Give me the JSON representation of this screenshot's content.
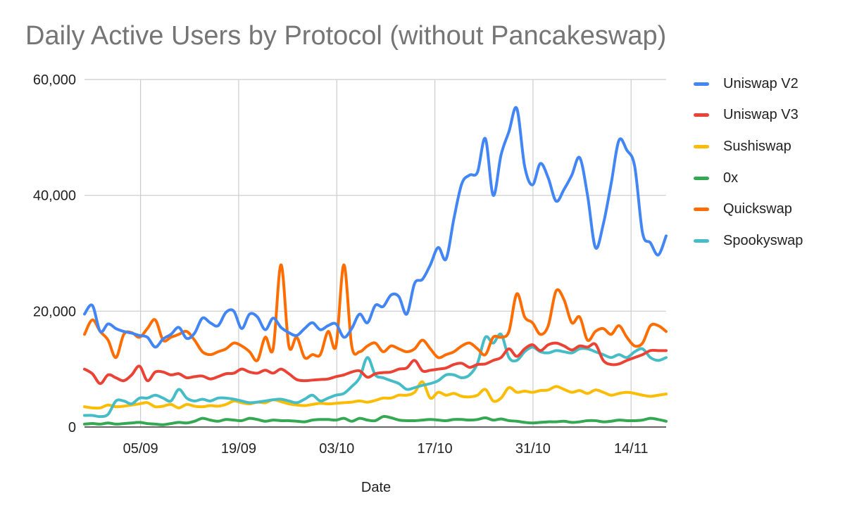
{
  "chart_data": {
    "type": "line",
    "title": "Daily Active Users by Protocol (without Pancakeswap)",
    "xlabel": "Date",
    "ylabel": "",
    "ylim": [
      0,
      60000
    ],
    "yticks": [
      "0",
      "20,000",
      "40,000",
      "60,000"
    ],
    "grid": true,
    "legend_position": "right",
    "x_start": "2021-08-28",
    "x_end": "2021-11-19",
    "x_ticks": [
      {
        "label": "05/09",
        "date": "2021-09-05"
      },
      {
        "label": "19/09",
        "date": "2021-09-19"
      },
      {
        "label": "03/10",
        "date": "2021-10-03"
      },
      {
        "label": "17/10",
        "date": "2021-10-17"
      },
      {
        "label": "31/10",
        "date": "2021-10-31"
      },
      {
        "label": "14/11",
        "date": "2021-11-14"
      }
    ],
    "series": [
      {
        "name": "Uniswap V2",
        "color": "#4285f4",
        "values": [
          19500,
          21000,
          16500,
          17800,
          17000,
          16500,
          16200,
          15800,
          15500,
          13800,
          15200,
          16000,
          17200,
          15300,
          16200,
          18800,
          18000,
          17500,
          19800,
          20000,
          17000,
          19500,
          19000,
          16800,
          18800,
          17200,
          16300,
          15800,
          17000,
          18000,
          16800,
          17500,
          17800,
          15500,
          17000,
          19500,
          18000,
          21000,
          20800,
          22800,
          22500,
          19500,
          24800,
          25500,
          28000,
          31000,
          29000,
          36000,
          42000,
          43500,
          44000,
          49800,
          40000,
          47000,
          51000,
          55000,
          45000,
          41800,
          45500,
          43000,
          39000,
          41000,
          43500,
          46500,
          40000,
          31000,
          35000,
          42000,
          49500,
          47800,
          45000,
          33500,
          31800,
          29700,
          33000
        ]
      },
      {
        "name": "Uniswap V3",
        "color": "#ea4335",
        "values": [
          10000,
          9200,
          7500,
          9000,
          8500,
          8000,
          9000,
          10500,
          8000,
          9500,
          9500,
          9000,
          9200,
          8500,
          8700,
          8800,
          8300,
          8700,
          9200,
          9300,
          10000,
          9500,
          9300,
          9800,
          9300,
          10000,
          9200,
          8200,
          8000,
          8100,
          8200,
          8300,
          8700,
          9000,
          9500,
          9700,
          8600,
          9200,
          9400,
          9500,
          10000,
          10200,
          11500,
          9700,
          9800,
          10000,
          10200,
          10800,
          11000,
          10300,
          10800,
          10900,
          11500,
          12000,
          13500,
          12200,
          13500,
          14200,
          13200,
          14200,
          14500,
          14000,
          13300,
          14000,
          13800,
          14300,
          11500,
          10800,
          10900,
          11500,
          12000,
          12500,
          13200,
          13200,
          13200
        ]
      },
      {
        "name": "Sushiswap",
        "color": "#fbbc04",
        "values": [
          3500,
          3300,
          3300,
          3800,
          3500,
          3600,
          3800,
          4000,
          4200,
          3500,
          3600,
          3900,
          3300,
          3900,
          3600,
          3500,
          3700,
          3600,
          3900,
          4500,
          4200,
          4000,
          4300,
          4200,
          4700,
          4400,
          4000,
          3800,
          3700,
          3900,
          4100,
          4000,
          4100,
          4200,
          4300,
          4500,
          4300,
          4600,
          5000,
          5000,
          5500,
          5500,
          6000,
          7800,
          5000,
          6000,
          5500,
          5800,
          5300,
          5200,
          5500,
          6500,
          4500,
          5000,
          6800,
          6000,
          6200,
          6000,
          6300,
          6400,
          7000,
          6500,
          6000,
          6300,
          5800,
          6400,
          6000,
          5500,
          5800,
          6000,
          5800,
          5500,
          5300,
          5500,
          5700
        ]
      },
      {
        "name": "0x",
        "color": "#34a853",
        "values": [
          500,
          600,
          500,
          700,
          500,
          600,
          700,
          800,
          600,
          500,
          400,
          600,
          800,
          700,
          1000,
          1500,
          1200,
          1000,
          1300,
          1200,
          1100,
          1500,
          1300,
          1000,
          1200,
          1100,
          1100,
          1000,
          900,
          1200,
          1300,
          1300,
          1200,
          1500,
          1000,
          1500,
          1200,
          1100,
          1800,
          1600,
          1200,
          1100,
          1100,
          1200,
          1300,
          1200,
          1100,
          1300,
          1300,
          1200,
          1300,
          1600,
          1200,
          1400,
          1100,
          1000,
          800,
          700,
          800,
          900,
          900,
          1000,
          800,
          900,
          1100,
          1100,
          900,
          1000,
          1200,
          1100,
          1100,
          1200,
          1500,
          1300,
          1000
        ]
      },
      {
        "name": "Quickswap",
        "color": "#ff6d01",
        "values": [
          16000,
          18500,
          16500,
          15000,
          12000,
          16000,
          16300,
          15500,
          17000,
          18500,
          15000,
          15500,
          16000,
          16500,
          15000,
          13000,
          12500,
          13000,
          13500,
          14500,
          14000,
          13000,
          11500,
          15500,
          13500,
          28000,
          14000,
          15500,
          12000,
          12500,
          12500,
          16500,
          14000,
          28000,
          14000,
          13000,
          14000,
          14500,
          13000,
          14000,
          13500,
          13000,
          13500,
          15000,
          13500,
          12000,
          12500,
          13000,
          14000,
          14500,
          13500,
          12500,
          15500,
          15500,
          16500,
          23000,
          19000,
          18000,
          16000,
          17500,
          23500,
          22000,
          18000,
          19000,
          15000,
          16500,
          17000,
          16000,
          17500,
          15500,
          14000,
          14500,
          17500,
          17500,
          16500
        ]
      },
      {
        "name": "Spookyswap",
        "color": "#46bdc6",
        "values": [
          2000,
          2000,
          1800,
          2200,
          4500,
          4500,
          4000,
          5000,
          5000,
          5500,
          5000,
          4500,
          6500,
          5000,
          4500,
          4800,
          4500,
          5000,
          5000,
          4800,
          4500,
          4200,
          4300,
          4500,
          4700,
          4800,
          4500,
          4200,
          4800,
          5500,
          4500,
          5000,
          5500,
          5800,
          7000,
          8500,
          12000,
          9000,
          8500,
          8000,
          7500,
          6500,
          6800,
          7200,
          7500,
          8000,
          9000,
          9000,
          8500,
          9000,
          11000,
          15500,
          14500,
          16000,
          12000,
          11500,
          13000,
          13800,
          13000,
          12800,
          13200,
          13000,
          12800,
          13500,
          13500,
          13000,
          12500,
          12000,
          12500,
          12000,
          13000,
          13500,
          12000,
          11500,
          12000
        ]
      }
    ]
  }
}
